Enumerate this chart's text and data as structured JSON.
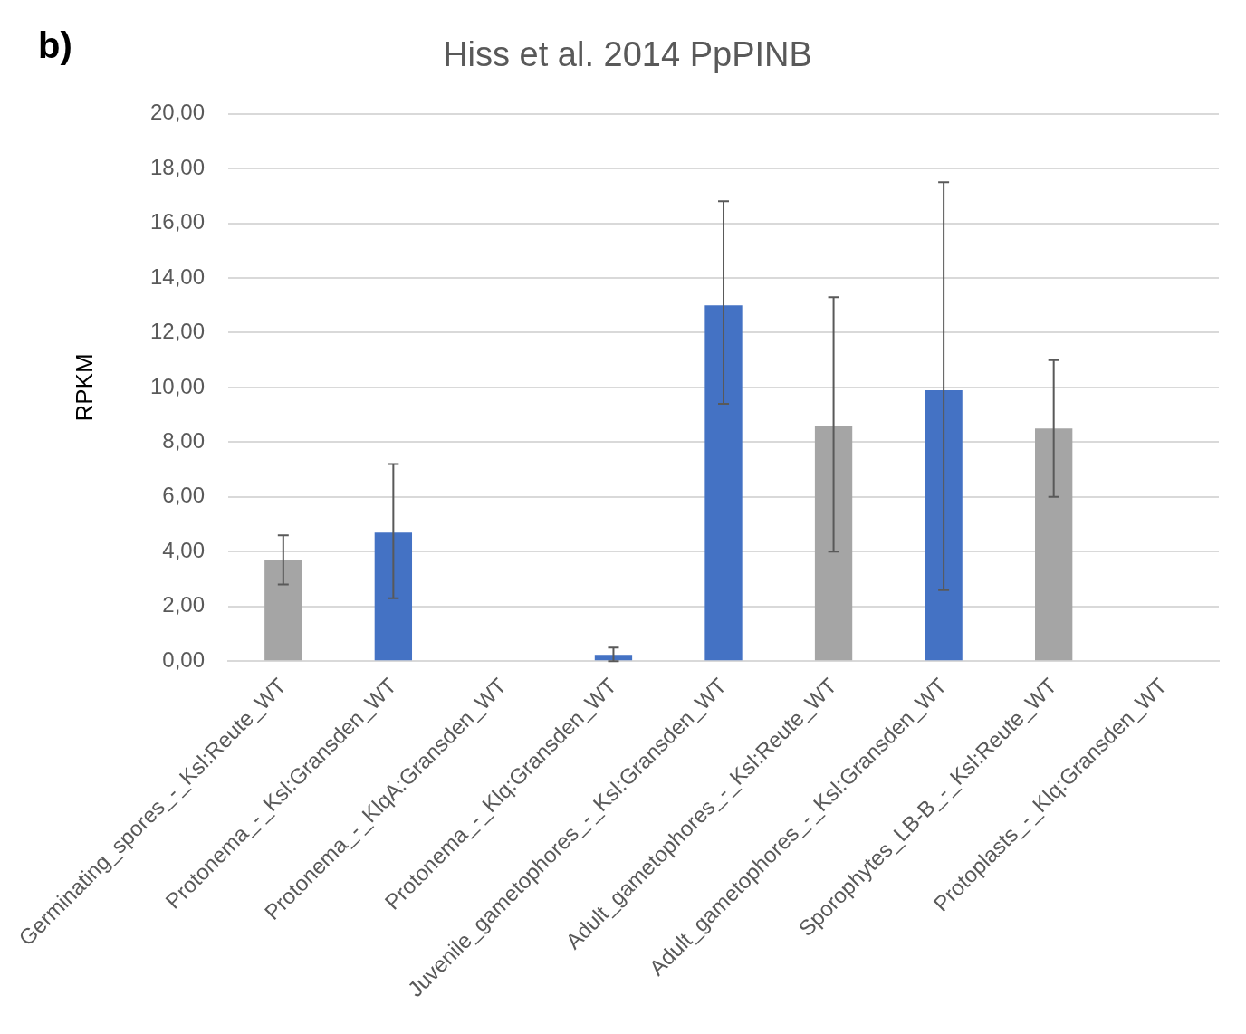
{
  "chart_data": {
    "type": "bar",
    "title": "Hiss et al. 2014 PpPINB",
    "ylabel": "RPKM",
    "categories": [
      "Germinating_spores_-_Ksl:Reute_WT",
      "Protonema_-_Ksl:Gransden_WT",
      "Protonema_-_KlqA:Gransden_WT",
      "Protonema_-_Klq:Gransden_WT",
      "Juvenile_gametophores_-_Ksl:Gransden_WT",
      "Adult_gametophores_-_Ksl:Reute_WT",
      "Adult_gametophores_-_Ksl:Gransden_WT",
      "Sporophytes_LB-B_-_Ksl:Reute_WT",
      "Protoplasts_-_Klq:Gransden_WT"
    ],
    "values": [
      3.7,
      4.7,
      0,
      0.23,
      13.0,
      8.6,
      9.9,
      8.5,
      0
    ],
    "colors": [
      "#a5a5a5",
      "#4472c4",
      "#4472c4",
      "#4472c4",
      "#4472c4",
      "#a5a5a5",
      "#4472c4",
      "#a5a5a5",
      "#a5a5a5"
    ],
    "errors": [
      [
        2.8,
        4.6
      ],
      [
        2.3,
        7.2
      ],
      null,
      [
        0,
        0.5
      ],
      [
        9.4,
        16.8
      ],
      [
        4.0,
        13.3
      ],
      [
        2.6,
        17.5
      ],
      [
        6.0,
        11.0
      ],
      null
    ],
    "ylim": [
      0,
      20
    ],
    "yticks": [
      {
        "value": 0,
        "label": "0,00"
      },
      {
        "value": 2,
        "label": "2,00"
      },
      {
        "value": 4,
        "label": "4,00"
      },
      {
        "value": 6,
        "label": "6,00"
      },
      {
        "value": 8,
        "label": "8,00"
      },
      {
        "value": 10,
        "label": "10,00"
      },
      {
        "value": 12,
        "label": "12,00"
      },
      {
        "value": 14,
        "label": "14,00"
      },
      {
        "value": 16,
        "label": "16,00"
      },
      {
        "value": 18,
        "label": "18,00"
      },
      {
        "value": 20,
        "label": "20,00"
      }
    ],
    "grid": "y",
    "legend": false,
    "annotations": [
      "b)"
    ]
  }
}
